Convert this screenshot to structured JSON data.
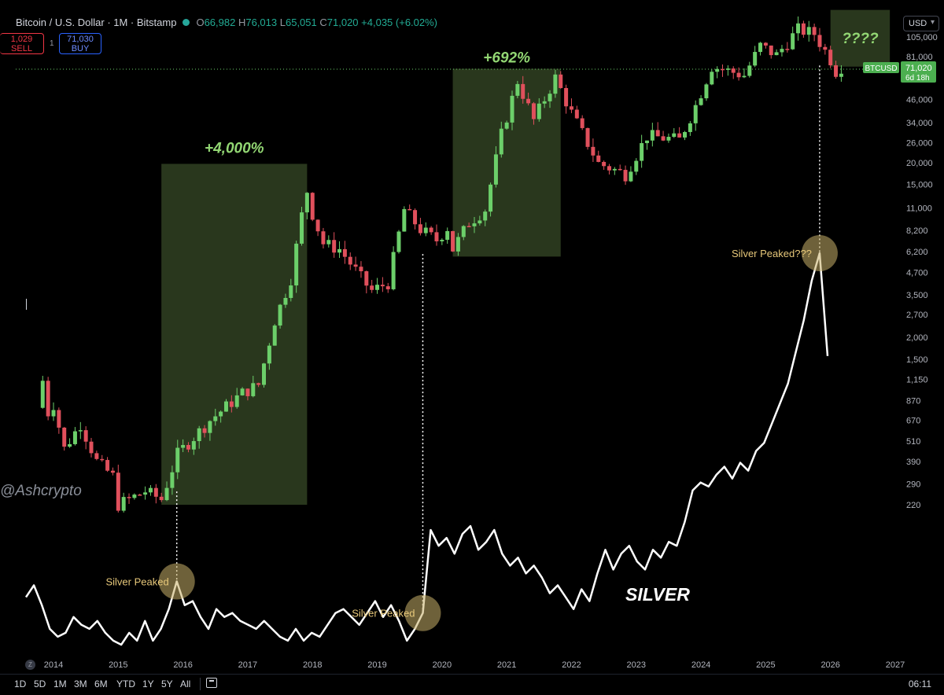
{
  "header": {
    "symbol_title": "Bitcoin / U.S. Dollar · 1M · Bitstamp",
    "open": "66,982",
    "high": "76,013",
    "low": "65,051",
    "close": "71,020",
    "change": "+4,035 (+6.02%)"
  },
  "trade": {
    "sell_price": "1,029",
    "sell_label": "SELL",
    "buy_price": "71,030",
    "buy_label": "BUY",
    "spread": "1"
  },
  "currency_select": "USD",
  "price_tag": {
    "symbol": "BTCUSD",
    "price": "71,020",
    "countdown": "6d 18h"
  },
  "watermark": "@Ashcrypto",
  "annotations": {
    "gain_2015": "+4,000%",
    "gain_2020": "+692%",
    "gain_2026": "????",
    "silver_peaked_1": "Silver Peaked",
    "silver_peaked_2": "Silver Peaked",
    "silver_peaked_3": "Silver Peaked???",
    "silver_label": "SILVER"
  },
  "bottom_bar": {
    "timeframes": [
      "1D",
      "5D",
      "1M",
      "3M",
      "6M",
      "YTD",
      "1Y",
      "5Y",
      "All"
    ],
    "clock": "06:11"
  },
  "colors": {
    "up": "#6ccf6a",
    "down": "#e0505c",
    "box_fill": "#2b3a1f",
    "gain_text": "#92d673",
    "silver_line": "#ffffff",
    "peak_circle": "#c8b06a",
    "peak_text": "#e7c87a",
    "price_tag": "#4caf50"
  },
  "chart_data": {
    "type": "candlestick",
    "title": "Bitcoin / U.S. Dollar · 1M · Bitstamp",
    "y_scale": "log",
    "y_ticks": [
      "105,000",
      "81,000",
      "46,000",
      "34,000",
      "26,000",
      "20,000",
      "15,000",
      "11,000",
      "8,200",
      "6,200",
      "4,700",
      "3,500",
      "2,700",
      "2,000",
      "1,500",
      "1,150",
      "870",
      "670",
      "510",
      "390",
      "290",
      "220"
    ],
    "x_ticks": [
      "2014",
      "2015",
      "2016",
      "2017",
      "2018",
      "2019",
      "2020",
      "2021",
      "2022",
      "2023",
      "2024",
      "2025",
      "2026",
      "2027"
    ],
    "btc_monthly_close": [
      {
        "x": "2013-11",
        "close": 1130
      },
      {
        "x": "2013-12",
        "close": 740
      },
      {
        "x": "2014-01",
        "close": 830
      },
      {
        "x": "2014-03",
        "close": 460
      },
      {
        "x": "2014-06",
        "close": 640
      },
      {
        "x": "2014-09",
        "close": 390
      },
      {
        "x": "2014-12",
        "close": 320
      },
      {
        "x": "2015-01",
        "close": 220
      },
      {
        "x": "2015-06",
        "close": 263
      },
      {
        "x": "2015-09",
        "close": 236
      },
      {
        "x": "2015-12",
        "close": 430
      },
      {
        "x": "2016-06",
        "close": 670
      },
      {
        "x": "2016-12",
        "close": 960
      },
      {
        "x": "2017-03",
        "close": 1070
      },
      {
        "x": "2017-06",
        "close": 2500
      },
      {
        "x": "2017-09",
        "close": 4350
      },
      {
        "x": "2017-11",
        "close": 10000
      },
      {
        "x": "2017-12",
        "close": 13800
      },
      {
        "x": "2018-01",
        "close": 10200
      },
      {
        "x": "2018-03",
        "close": 6900
      },
      {
        "x": "2018-06",
        "close": 6400
      },
      {
        "x": "2018-11",
        "close": 4000
      },
      {
        "x": "2018-12",
        "close": 3700
      },
      {
        "x": "2019-03",
        "close": 4100
      },
      {
        "x": "2019-06",
        "close": 10800
      },
      {
        "x": "2019-09",
        "close": 8300
      },
      {
        "x": "2019-12",
        "close": 7200
      },
      {
        "x": "2020-02",
        "close": 8500
      },
      {
        "x": "2020-03",
        "close": 6400
      },
      {
        "x": "2020-06",
        "close": 9100
      },
      {
        "x": "2020-09",
        "close": 10800
      },
      {
        "x": "2020-12",
        "close": 29000
      },
      {
        "x": "2021-03",
        "close": 58800
      },
      {
        "x": "2021-06",
        "close": 35000
      },
      {
        "x": "2021-10",
        "close": 61300
      },
      {
        "x": "2022-01",
        "close": 38500
      },
      {
        "x": "2022-06",
        "close": 19800
      },
      {
        "x": "2022-11",
        "close": 17200
      },
      {
        "x": "2023-03",
        "close": 28500
      },
      {
        "x": "2023-09",
        "close": 27000
      },
      {
        "x": "2023-12",
        "close": 42500
      },
      {
        "x": "2024-03",
        "close": 71300
      },
      {
        "x": "2024-09",
        "close": 63300
      },
      {
        "x": "2024-12",
        "close": 93400
      },
      {
        "x": "2025-03",
        "close": 82500
      },
      {
        "x": "2025-07",
        "close": 115800
      },
      {
        "x": "2025-10",
        "close": 109500
      },
      {
        "x": "2026-01",
        "close": 78000
      },
      {
        "x": "2026-02",
        "close": 66982
      },
      {
        "x": "2026-03",
        "close": 71020
      }
    ],
    "highlighted_ranges": [
      {
        "from": "2015-09",
        "to": "2017-12",
        "low": 220,
        "high": 19700,
        "label": "+4,000%"
      },
      {
        "from": "2020-03",
        "to": "2021-11",
        "low": 5800,
        "high": 69000,
        "label": "+692%"
      },
      {
        "from": "2026-01",
        "to": "2026-12",
        "low": 71000,
        "high": 150000,
        "label": "????"
      }
    ],
    "series": [
      {
        "name": "SILVER",
        "type": "line",
        "relative_values": [
          0.13,
          0.16,
          0.11,
          0.05,
          0.03,
          0.04,
          0.08,
          0.06,
          0.05,
          0.07,
          0.04,
          0.02,
          0.01,
          0.04,
          0.02,
          0.07,
          0.02,
          0.05,
          0.1,
          0.17,
          0.11,
          0.12,
          0.08,
          0.05,
          0.1,
          0.08,
          0.09,
          0.07,
          0.06,
          0.05,
          0.07,
          0.05,
          0.03,
          0.02,
          0.05,
          0.02,
          0.04,
          0.03,
          0.06,
          0.09,
          0.1,
          0.08,
          0.06,
          0.09,
          0.12,
          0.08,
          0.11,
          0.07,
          0.02,
          0.05,
          0.09,
          0.3,
          0.26,
          0.28,
          0.24,
          0.29,
          0.31,
          0.25,
          0.27,
          0.3,
          0.24,
          0.21,
          0.23,
          0.19,
          0.21,
          0.18,
          0.14,
          0.16,
          0.13,
          0.1,
          0.15,
          0.12,
          0.19,
          0.25,
          0.2,
          0.24,
          0.26,
          0.22,
          0.2,
          0.25,
          0.23,
          0.27,
          0.26,
          0.32,
          0.4,
          0.42,
          0.41,
          0.44,
          0.46,
          0.43,
          0.47,
          0.45,
          0.5,
          0.52,
          0.57,
          0.62,
          0.67,
          0.75,
          0.83,
          0.93,
          1.0,
          0.74
        ]
      }
    ],
    "silver_peak_markers": [
      "2015-09",
      "2020-02",
      "2025-12"
    ],
    "grid": false
  }
}
